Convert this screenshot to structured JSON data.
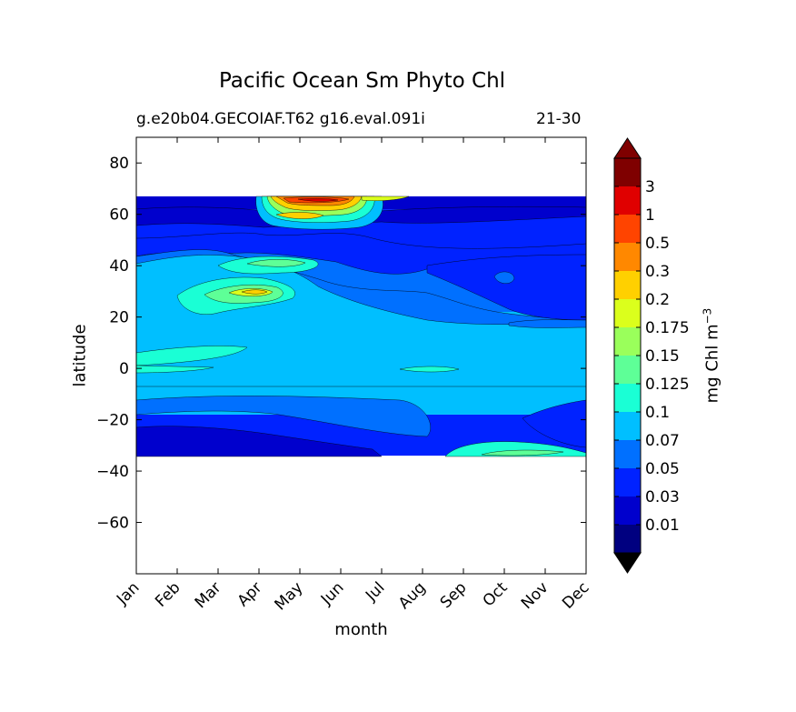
{
  "chart_data": {
    "type": "heatmap",
    "title": "Pacific Ocean Sm Phyto Chl",
    "subtitle_left": "g.e20b04.GECOIAF.T62 g16.eval.091i",
    "subtitle_right": "21-30",
    "xlabel": "month",
    "ylabel": "latitude",
    "x_categories": [
      "Jan",
      "Feb",
      "Mar",
      "Apr",
      "May",
      "Jun",
      "Jul",
      "Aug",
      "Sep",
      "Oct",
      "Nov",
      "Dec"
    ],
    "ylim": [
      -80,
      90
    ],
    "y_ticks": [
      80,
      60,
      40,
      20,
      0,
      -20,
      -40,
      -60
    ],
    "y_tick_labels": [
      "80",
      "60",
      "40",
      "20",
      "0",
      "−20",
      "−40",
      "−60"
    ],
    "data_lat_range": [
      -34,
      67
    ],
    "colorbar": {
      "label": "mg Chl m",
      "label_superscript": "−3",
      "tick_labels": [
        "0.01",
        "0.03",
        "0.05",
        "0.07",
        "0.1",
        "0.125",
        "0.15",
        "0.175",
        "0.2",
        "0.3",
        "0.5",
        "1",
        "3"
      ],
      "colors": [
        "#000080",
        "#0000cd",
        "#0022ff",
        "#0070ff",
        "#00bfff",
        "#1affd5",
        "#5eff97",
        "#9aff5b",
        "#dbff1c",
        "#ffd000",
        "#ff8800",
        "#ff4400",
        "#e00000",
        "#7f0000"
      ],
      "extend": "both"
    },
    "regions": [
      {
        "name": "band-south-low",
        "lat": [
          -34,
          -18
        ],
        "level": 2
      },
      {
        "name": "band-south-mid",
        "lat": [
          -18,
          -3
        ],
        "level": 4
      },
      {
        "name": "band-equator",
        "lat": [
          -3,
          3
        ],
        "level": 3
      },
      {
        "name": "band-tropical",
        "lat": [
          3,
          22
        ],
        "level": 4
      },
      {
        "name": "band-subtropical",
        "lat": [
          22,
          45
        ],
        "level": 3
      },
      {
        "name": "band-north-mid",
        "lat": [
          45,
          62
        ],
        "level": 2
      },
      {
        "name": "band-north-high",
        "lat": [
          62,
          67
        ],
        "level": 1
      }
    ]
  }
}
